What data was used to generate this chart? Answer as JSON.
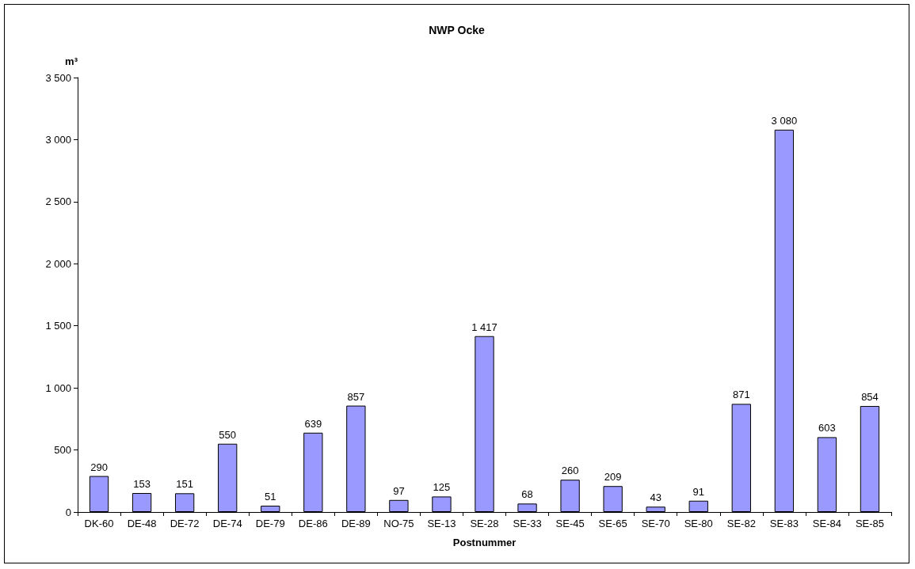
{
  "chart_data": {
    "type": "bar",
    "title": "NWP Ocke",
    "ylabel": "m³",
    "xlabel": "Postnummer",
    "categories": [
      "DK-60",
      "DE-48",
      "DE-72",
      "DE-74",
      "DE-79",
      "DE-86",
      "DE-89",
      "NO-75",
      "SE-13",
      "SE-28",
      "SE-33",
      "SE-45",
      "SE-65",
      "SE-70",
      "SE-80",
      "SE-82",
      "SE-83",
      "SE-84",
      "SE-85"
    ],
    "values": [
      290,
      153,
      151,
      550,
      51,
      639,
      857,
      97,
      125,
      1417,
      68,
      260,
      209,
      43,
      91,
      871,
      3080,
      603,
      854
    ],
    "value_labels": [
      "290",
      "153",
      "151",
      "550",
      "51",
      "639",
      "857",
      "97",
      "125",
      "1 417",
      "68",
      "260",
      "209",
      "43",
      "91",
      "871",
      "3 080",
      "603",
      "854"
    ],
    "color": "#9999ff",
    "ylim": [
      0,
      3500
    ],
    "yticks": [
      0,
      500,
      {
        "value": 1000,
        "label": "1 000"
      },
      {
        "value": 1500,
        "label": "1 500"
      },
      {
        "value": 2000,
        "label": "2 000"
      },
      {
        "value": 2500,
        "label": "2 500"
      },
      {
        "value": 3000,
        "label": "3 000"
      },
      {
        "value": 3500,
        "label": "3 500"
      }
    ],
    "grid": false
  }
}
